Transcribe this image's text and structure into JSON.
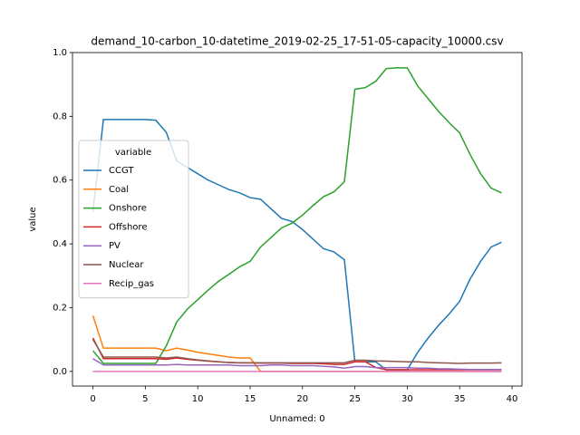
{
  "chart_data": {
    "type": "line",
    "title": "demand_10-carbon_10-datetime_2019-02-25_17-51-05-capacity_10000.csv",
    "xlabel": "Unnamed: 0",
    "ylabel": "value",
    "legend_title": "variable",
    "legend": "upper left",
    "grid": false,
    "x": [
      0,
      1,
      2,
      3,
      4,
      5,
      6,
      7,
      8,
      9,
      10,
      11,
      12,
      13,
      14,
      15,
      16,
      17,
      18,
      19,
      20,
      21,
      22,
      23,
      24,
      25,
      26,
      27,
      28,
      29,
      30,
      31,
      32,
      33,
      34,
      35,
      36,
      37,
      38,
      39
    ],
    "xlim": [
      -1.95,
      40.95
    ],
    "xticks": [
      0,
      5,
      10,
      15,
      20,
      25,
      30,
      35,
      40
    ],
    "ylim": [
      -0.046,
      1.0
    ],
    "yticks": [
      {
        "value": 0,
        "label": "0.0"
      },
      0.2,
      0.4,
      0.6,
      0.8,
      {
        "value": 1,
        "label": "1.0"
      }
    ],
    "series": [
      {
        "name": "CCGT",
        "color": "#1f77b4",
        "values": [
          0.5,
          0.79,
          0.79,
          0.79,
          0.79,
          0.79,
          0.788,
          0.75,
          0.66,
          0.64,
          0.62,
          0.6,
          0.585,
          0.57,
          0.56,
          0.545,
          0.54,
          0.51,
          0.48,
          0.47,
          0.445,
          0.415,
          0.385,
          0.375,
          0.35,
          0.03,
          0.03,
          0.03,
          0.005,
          0.005,
          0.005,
          0.06,
          0.105,
          0.145,
          0.18,
          0.22,
          0.29,
          0.345,
          0.39,
          0.405
        ]
      },
      {
        "name": "Coal",
        "color": "#ff7f0e",
        "values": [
          0.175,
          0.073,
          0.073,
          0.073,
          0.073,
          0.073,
          0.073,
          0.065,
          0.073,
          0.067,
          0.06,
          0.055,
          0.05,
          0.045,
          0.042,
          0.042,
          0,
          0,
          0,
          0,
          0,
          0,
          0,
          0,
          0,
          0,
          0,
          0,
          0,
          0,
          0,
          0,
          0,
          0,
          0,
          0,
          0,
          0,
          0,
          0
        ]
      },
      {
        "name": "Onshore",
        "color": "#2ca02c",
        "values": [
          0.065,
          0.025,
          0.025,
          0.025,
          0.025,
          0.025,
          0.025,
          0.08,
          0.155,
          0.195,
          0.225,
          0.255,
          0.283,
          0.305,
          0.328,
          0.345,
          0.39,
          0.42,
          0.45,
          0.465,
          0.49,
          0.52,
          0.548,
          0.563,
          0.595,
          0.885,
          0.89,
          0.91,
          0.95,
          0.952,
          0.952,
          0.895,
          0.855,
          0.815,
          0.78,
          0.748,
          0.68,
          0.62,
          0.575,
          0.56
        ]
      },
      {
        "name": "Offshore",
        "color": "#d62728",
        "values": [
          0.105,
          0.04,
          0.04,
          0.04,
          0.04,
          0.04,
          0.04,
          0.038,
          0.042,
          0.038,
          0.035,
          0.032,
          0.03,
          0.028,
          0.027,
          0.027,
          0.026,
          0.026,
          0.026,
          0.025,
          0.025,
          0.025,
          0.024,
          0.022,
          0.022,
          0.03,
          0.03,
          0.012,
          0.005,
          0.005,
          0.005,
          0.005,
          0.005,
          0.005,
          0.005,
          0.005,
          0.005,
          0.005,
          0.005,
          0.005
        ]
      },
      {
        "name": "PV",
        "color": "#9467bd",
        "values": [
          0.04,
          0.02,
          0.02,
          0.02,
          0.02,
          0.02,
          0.02,
          0.02,
          0.022,
          0.02,
          0.02,
          0.02,
          0.02,
          0.02,
          0.018,
          0.018,
          0.018,
          0.02,
          0.02,
          0.018,
          0.018,
          0.018,
          0.016,
          0.014,
          0.01,
          0.015,
          0.015,
          0.012,
          0.012,
          0.012,
          0.012,
          0.01,
          0.01,
          0.008,
          0.008,
          0.007,
          0.006,
          0.006,
          0.006,
          0.006
        ]
      },
      {
        "name": "Nuclear",
        "color": "#8c564b",
        "values": [
          0.1,
          0.045,
          0.045,
          0.045,
          0.045,
          0.045,
          0.045,
          0.042,
          0.045,
          0.04,
          0.036,
          0.033,
          0.03,
          0.028,
          0.027,
          0.027,
          0.027,
          0.027,
          0.027,
          0.027,
          0.027,
          0.027,
          0.027,
          0.027,
          0.027,
          0.035,
          0.035,
          0.033,
          0.032,
          0.031,
          0.03,
          0.03,
          0.028,
          0.027,
          0.026,
          0.025,
          0.026,
          0.026,
          0.026,
          0.027
        ]
      },
      {
        "name": "Recip_gas",
        "color": "#e377c2",
        "values": [
          0,
          0,
          0,
          0,
          0,
          0,
          0,
          0,
          0,
          0,
          0,
          0,
          0,
          0,
          0,
          0,
          0,
          0,
          0,
          0,
          0,
          0,
          0,
          0,
          0,
          0,
          0,
          0,
          0,
          0,
          0,
          0,
          0,
          0,
          0,
          0,
          0,
          0,
          0,
          0
        ]
      }
    ]
  }
}
